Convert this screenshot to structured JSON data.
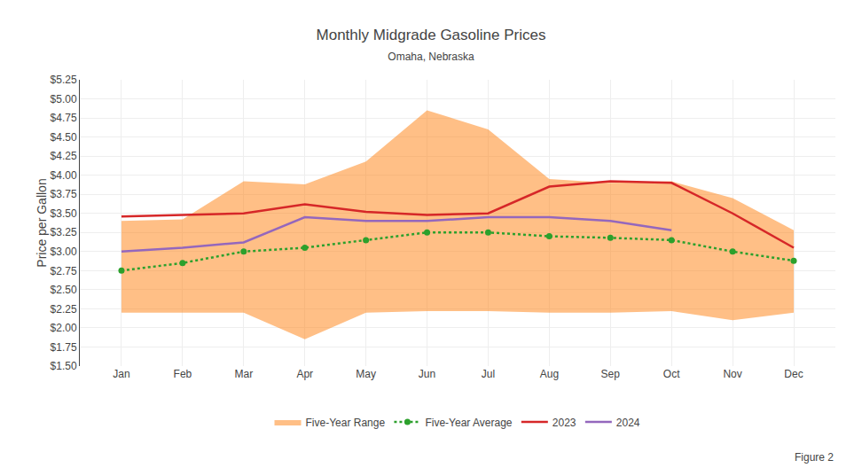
{
  "chart_data": {
    "type": "line",
    "title": "Monthly Midgrade Gasoline Prices",
    "subtitle": "Omaha, Nebraska",
    "y_label": "Price per Gallon",
    "annotations": [
      "Figure 2"
    ],
    "categories": [
      "Jan",
      "Feb",
      "Mar",
      "Apr",
      "May",
      "Jun",
      "Jul",
      "Aug",
      "Sep",
      "Oct",
      "Nov",
      "Dec"
    ],
    "series": [
      {
        "name": "Five-Year Range",
        "type": "range",
        "low": [
          2.2,
          2.2,
          2.2,
          1.85,
          2.2,
          2.22,
          2.22,
          2.2,
          2.2,
          2.22,
          2.1,
          2.2
        ],
        "high": [
          3.4,
          3.42,
          3.92,
          3.88,
          4.18,
          4.85,
          4.6,
          3.95,
          3.9,
          3.92,
          3.7,
          3.28
        ]
      },
      {
        "name": "Five-Year Average",
        "line_style": "dotted",
        "marker": "circle",
        "values": [
          2.75,
          2.85,
          3.0,
          3.05,
          3.15,
          3.25,
          3.25,
          3.2,
          3.18,
          3.15,
          3.0,
          2.88
        ]
      },
      {
        "name": "2023",
        "values": [
          3.46,
          3.48,
          3.5,
          3.62,
          3.52,
          3.48,
          3.5,
          3.85,
          3.92,
          3.9,
          3.5,
          3.05
        ]
      },
      {
        "name": "2024",
        "values": [
          3.0,
          3.05,
          3.12,
          3.45,
          3.4,
          3.4,
          3.45,
          3.45,
          3.4,
          3.28,
          null,
          null
        ]
      }
    ],
    "ylim": [
      1.5,
      5.25
    ],
    "yticks": [
      {
        "value": 1.5,
        "label": "$1.50"
      },
      {
        "value": 1.75,
        "label": "$1.75"
      },
      {
        "value": 2.0,
        "label": "$2.00"
      },
      {
        "value": 2.25,
        "label": "$2.25"
      },
      {
        "value": 2.5,
        "label": "$2.50"
      },
      {
        "value": 2.75,
        "label": "$2.75"
      },
      {
        "value": 3.0,
        "label": "$3.00"
      },
      {
        "value": 3.25,
        "label": "$3.25"
      },
      {
        "value": 3.5,
        "label": "$3.50"
      },
      {
        "value": 3.75,
        "label": "$3.75"
      },
      {
        "value": 4.0,
        "label": "$4.00"
      },
      {
        "value": 4.25,
        "label": "$4.25"
      },
      {
        "value": 4.5,
        "label": "$4.50"
      },
      {
        "value": 4.75,
        "label": "$4.75"
      },
      {
        "value": 5.0,
        "label": "$5.00"
      },
      {
        "value": 5.25,
        "label": "$5.25"
      }
    ],
    "grid": true,
    "legend": "bottom"
  }
}
